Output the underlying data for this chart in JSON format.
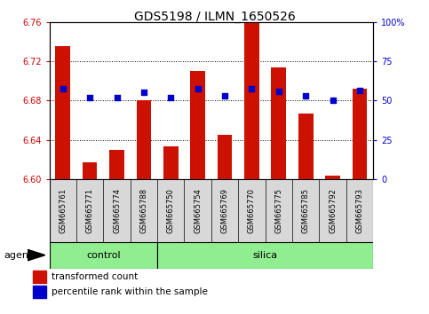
{
  "title": "GDS5198 / ILMN_1650526",
  "samples": [
    "GSM665761",
    "GSM665771",
    "GSM665774",
    "GSM665788",
    "GSM665750",
    "GSM665754",
    "GSM665769",
    "GSM665770",
    "GSM665775",
    "GSM665785",
    "GSM665792",
    "GSM665793"
  ],
  "n_control": 4,
  "n_silica": 8,
  "bar_values": [
    6.735,
    6.617,
    6.63,
    6.68,
    6.633,
    6.71,
    6.645,
    6.762,
    6.714,
    6.667,
    6.603,
    6.692
  ],
  "percentile_values": [
    6.692,
    6.683,
    6.683,
    6.688,
    6.683,
    6.692,
    6.685,
    6.692,
    6.689,
    6.685,
    6.68,
    6.69
  ],
  "ylim_left": [
    6.6,
    6.76
  ],
  "ylim_right": [
    0,
    100
  ],
  "yticks_left": [
    6.6,
    6.64,
    6.68,
    6.72,
    6.76
  ],
  "yticks_right": [
    0,
    25,
    50,
    75,
    100
  ],
  "ytick_labels_right": [
    "0",
    "25",
    "50",
    "75",
    "100%"
  ],
  "bar_color": "#cc1100",
  "percentile_color": "#0000cc",
  "bar_base": 6.6,
  "left_tick_color": "#cc0000",
  "right_tick_color": "#0000cc",
  "control_color": "#90ee90",
  "silica_color": "#90ee90",
  "agent_label": "agent",
  "control_label": "control",
  "silica_label": "silica",
  "legend_transformed": "transformed count",
  "legend_percentile": "percentile rank within the sample",
  "title_fontsize": 10,
  "tick_fontsize": 7,
  "sample_fontsize": 6,
  "group_fontsize": 8,
  "legend_fontsize": 7.5,
  "agent_fontsize": 8,
  "bar_width": 0.55
}
